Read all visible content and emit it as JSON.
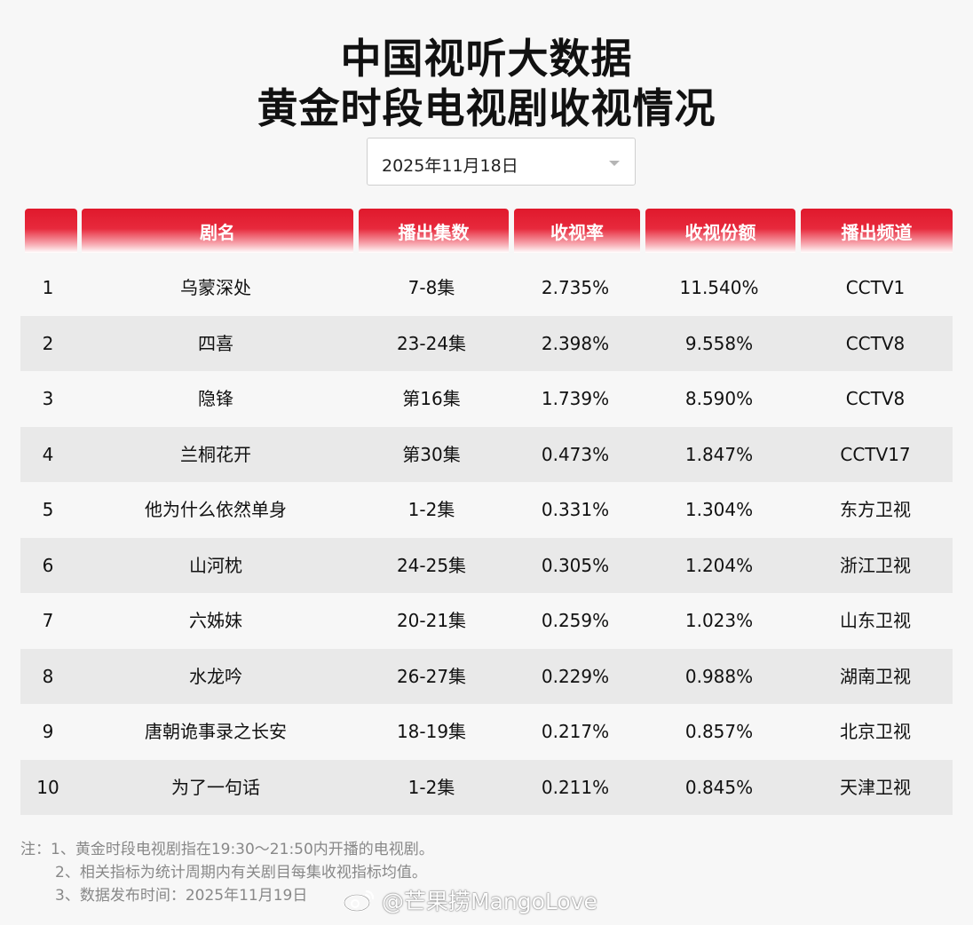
{
  "title": {
    "line1": "中国视听大数据",
    "line2": "黄金时段电视剧收视情况"
  },
  "date_select": {
    "value": "2025年11月18日",
    "icon": "chevron-down-icon"
  },
  "table": {
    "headers": [
      "",
      "剧名",
      "播出集数",
      "收视率",
      "收视份额",
      "播出频道"
    ],
    "rows": [
      [
        "1",
        "乌蒙深处",
        "7-8集",
        "2.735%",
        "11.540%",
        "CCTV1"
      ],
      [
        "2",
        "四喜",
        "23-24集",
        "2.398%",
        "9.558%",
        "CCTV8"
      ],
      [
        "3",
        "隐锋",
        "第16集",
        "1.739%",
        "8.590%",
        "CCTV8"
      ],
      [
        "4",
        "兰桐花开",
        "第30集",
        "0.473%",
        "1.847%",
        "CCTV17"
      ],
      [
        "5",
        "他为什么依然单身",
        "1-2集",
        "0.331%",
        "1.304%",
        "东方卫视"
      ],
      [
        "6",
        "山河枕",
        "24-25集",
        "0.305%",
        "1.204%",
        "浙江卫视"
      ],
      [
        "7",
        "六姊妹",
        "20-21集",
        "0.259%",
        "1.023%",
        "山东卫视"
      ],
      [
        "8",
        "水龙吟",
        "26-27集",
        "0.229%",
        "0.988%",
        "湖南卫视"
      ],
      [
        "9",
        "唐朝诡事录之长安",
        "18-19集",
        "0.217%",
        "0.857%",
        "北京卫视"
      ],
      [
        "10",
        "为了一句话",
        "1-2集",
        "0.211%",
        "0.845%",
        "天津卫视"
      ]
    ]
  },
  "notes": [
    "注：1、黄金时段电视剧指在19:30～21:50内开播的电视剧。",
    "2、相关指标为统计周期内有关剧目每集收视指标均值。",
    "3、数据发布时间：2025年11月19日"
  ],
  "watermark": {
    "text": "@芒果捞MangoLove",
    "icon": "weibo-logo-icon"
  },
  "colors": {
    "header_red": "#e0192c",
    "row_alt": "#e9e9e9",
    "page_bg": "#f7f7f7"
  }
}
